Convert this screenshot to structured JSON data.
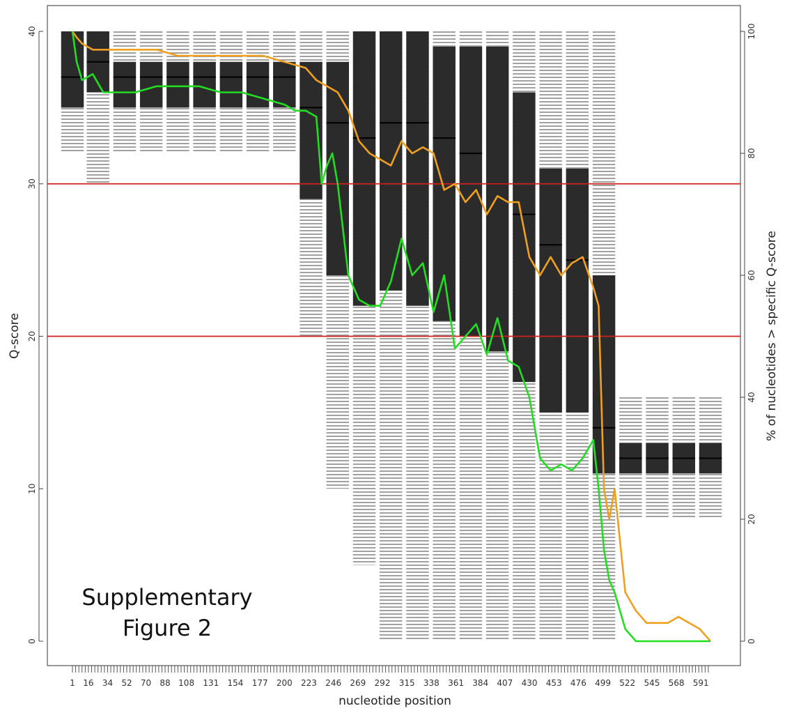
{
  "chart_data": {
    "type": "boxplot+line",
    "xlabel": "nucleotide position",
    "ylabel": "Q-score",
    "y2label": "% of nucleotides > specific Q-score",
    "caption_line1": "Supplementary",
    "caption_line2": "Figure 2",
    "x_tick_labels": [
      "1",
      "16",
      "34",
      "52",
      "70",
      "88",
      "108",
      "131",
      "154",
      "177",
      "200",
      "223",
      "246",
      "269",
      "292",
      "315",
      "338",
      "361",
      "384",
      "407",
      "430",
      "453",
      "476",
      "499",
      "522",
      "545",
      "568",
      "591"
    ],
    "x_range": [
      1,
      600
    ],
    "ylim": [
      0,
      40
    ],
    "y_ticks": [
      "0",
      "10",
      "20",
      "30",
      "40"
    ],
    "y2lim": [
      0,
      100
    ],
    "y2_ticks": [
      "0",
      "20",
      "40",
      "60",
      "80",
      "100"
    ],
    "reference_lines": [
      {
        "y": 30,
        "color": "#d02020"
      },
      {
        "y": 20,
        "color": "#d02020"
      }
    ],
    "colors": {
      "box": "#2b2b2b",
      "dashed": "#555555",
      "pct_q20": "#f0a020",
      "pct_q30": "#22dd22"
    },
    "boxes": {
      "positions": [
        1,
        25,
        50,
        75,
        100,
        125,
        150,
        175,
        200,
        225,
        250,
        275,
        300,
        325,
        350,
        375,
        400,
        425,
        450,
        475,
        500,
        525,
        550,
        575,
        600
      ],
      "q1": [
        35,
        36,
        35,
        35,
        35,
        35,
        35,
        35,
        35,
        29,
        24,
        22,
        23,
        22,
        21,
        20,
        19,
        17,
        15,
        15,
        11,
        11,
        11,
        11,
        11
      ],
      "median": [
        37,
        38,
        37,
        37,
        37,
        37,
        37,
        37,
        37,
        35,
        34,
        33,
        34,
        34,
        33,
        32,
        30,
        28,
        26,
        25,
        14,
        12,
        12,
        12,
        12
      ],
      "q3": [
        40,
        40,
        38,
        38,
        38,
        38,
        38,
        38,
        38,
        38,
        38,
        40,
        40,
        40,
        39,
        39,
        39,
        36,
        31,
        31,
        24,
        13,
        13,
        13,
        13
      ],
      "whisker_low": [
        32,
        30,
        32,
        32,
        32,
        32,
        32,
        32,
        32,
        20,
        10,
        5,
        0,
        0,
        0,
        0,
        0,
        0,
        0,
        0,
        0,
        8,
        8,
        8,
        8
      ],
      "whisker_high": [
        40,
        40,
        40,
        40,
        40,
        40,
        40,
        40,
        40,
        40,
        40,
        40,
        40,
        40,
        40,
        40,
        40,
        40,
        40,
        40,
        40,
        16,
        16,
        16,
        16
      ]
    },
    "series": [
      {
        "color": "#f0a020",
        "x": [
          1,
          5,
          10,
          20,
          30,
          40,
          50,
          60,
          80,
          100,
          120,
          140,
          160,
          180,
          200,
          220,
          230,
          240,
          250,
          260,
          270,
          280,
          290,
          300,
          310,
          320,
          330,
          340,
          350,
          360,
          370,
          380,
          390,
          400,
          410,
          420,
          430,
          440,
          450,
          460,
          470,
          480,
          490,
          495,
          500,
          505,
          510,
          520,
          530,
          540,
          550,
          560,
          570,
          580,
          590,
          600
        ],
        "y": [
          100,
          99,
          98,
          97,
          97,
          97,
          97,
          97,
          97,
          96,
          96,
          96,
          96,
          96,
          95,
          94,
          92,
          91,
          90,
          87,
          82,
          80,
          79,
          78,
          82,
          80,
          81,
          80,
          74,
          75,
          72,
          74,
          70,
          73,
          72,
          72,
          63,
          60,
          63,
          60,
          62,
          63,
          58,
          55,
          25,
          20,
          25,
          8,
          5,
          3,
          3,
          3,
          4,
          3,
          2,
          0
        ]
      },
      {
        "color": "#22dd22",
        "x": [
          1,
          5,
          10,
          20,
          30,
          40,
          50,
          60,
          80,
          100,
          120,
          140,
          160,
          180,
          200,
          210,
          220,
          230,
          235,
          240,
          245,
          250,
          260,
          270,
          280,
          290,
          300,
          310,
          320,
          330,
          340,
          350,
          360,
          370,
          380,
          390,
          400,
          410,
          420,
          430,
          440,
          450,
          460,
          470,
          480,
          490,
          495,
          500,
          505,
          510,
          520,
          530,
          540,
          550,
          560,
          570,
          580,
          590,
          600
        ],
        "y": [
          100,
          95,
          92,
          93,
          90,
          90,
          90,
          90,
          91,
          91,
          91,
          90,
          90,
          89,
          88,
          87,
          87,
          86,
          75,
          78,
          80,
          75,
          60,
          56,
          55,
          55,
          59,
          66,
          60,
          62,
          54,
          60,
          48,
          50,
          52,
          47,
          53,
          46,
          45,
          40,
          30,
          28,
          29,
          28,
          30,
          33,
          25,
          15,
          10,
          8,
          2,
          0,
          0,
          0,
          0,
          0,
          0,
          0,
          0
        ]
      }
    ]
  }
}
